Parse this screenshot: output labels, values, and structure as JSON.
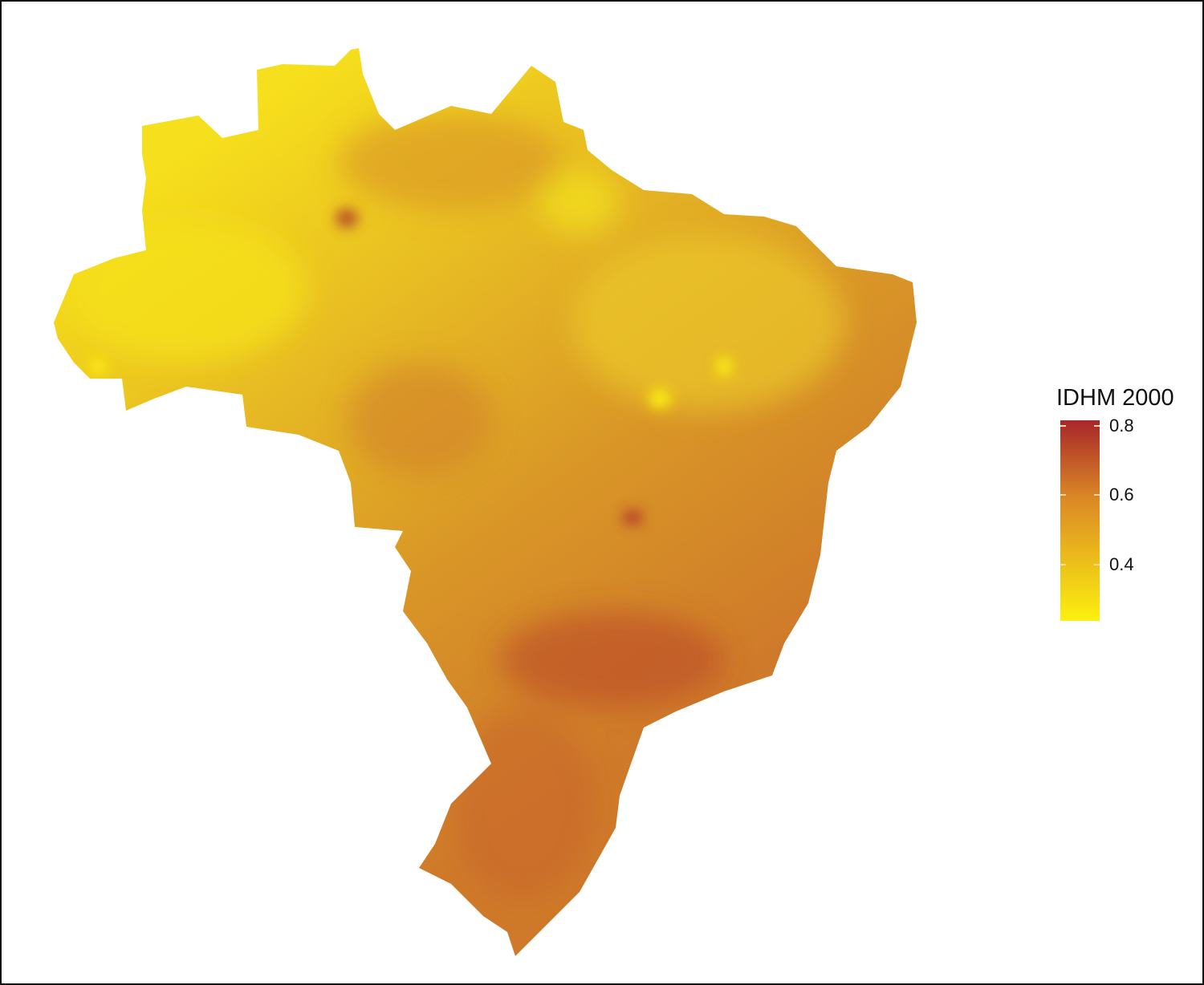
{
  "legend": {
    "title": "IDHM 2000",
    "min": 0.237,
    "max": 0.816,
    "ticks": [
      {
        "label": "0.8",
        "value": 0.8
      },
      {
        "label": "0.6",
        "value": 0.6
      },
      {
        "label": "0.4",
        "value": 0.4
      }
    ],
    "colors": {
      "low": "#fcf00f",
      "mid": "#dc8a26",
      "high": "#a8262a"
    }
  },
  "map": {
    "region": "Brazil municipalities",
    "fill_variable": "IDHM 2000",
    "base_color": "#e0a624"
  }
}
